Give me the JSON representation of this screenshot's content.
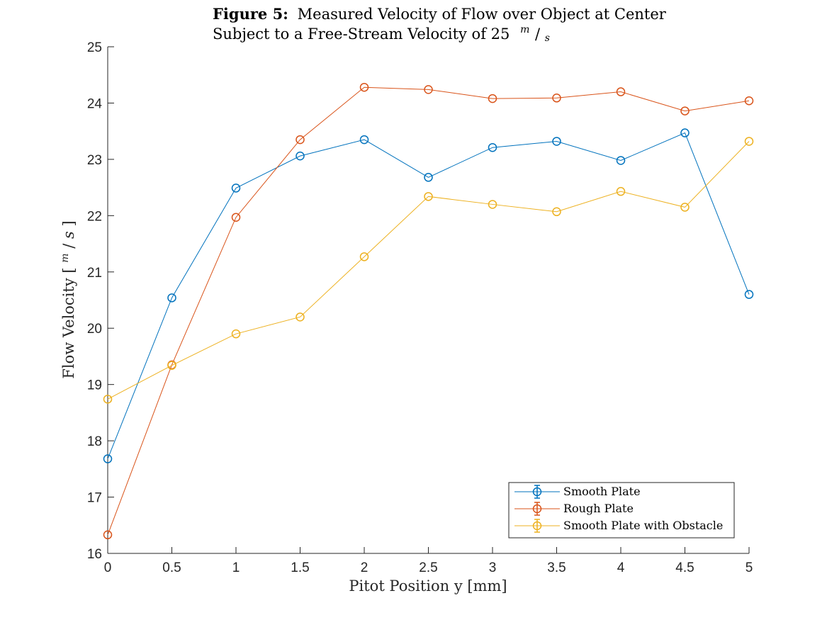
{
  "chart_data": {
    "type": "line",
    "title_bold": "Figure 5:",
    "title_line1": "Measured Velocity of Flow over Object at Center",
    "title_line2": "Subject to a Free-Stream Velocity of 25",
    "title_unit_num": "m",
    "title_unit_den": "s",
    "xlabel": "Pitot Position y [mm]",
    "ylabel_text": "Flow Velocity [",
    "ylabel_unit_num": "m",
    "ylabel_unit_den": "s",
    "ylabel_close": "]",
    "xlim": [
      0,
      5
    ],
    "ylim": [
      16,
      25
    ],
    "x_ticks": [
      0,
      0.5,
      1,
      1.5,
      2,
      2.5,
      3,
      3.5,
      4,
      4.5,
      5
    ],
    "x_tick_labels": [
      "0",
      "0.5",
      "1",
      "1.5",
      "2",
      "2.5",
      "3",
      "3.5",
      "4",
      "4.5",
      "5"
    ],
    "y_ticks": [
      16,
      17,
      18,
      19,
      20,
      21,
      22,
      23,
      24,
      25
    ],
    "y_tick_labels": [
      "16",
      "17",
      "18",
      "19",
      "20",
      "21",
      "22",
      "23",
      "24",
      "25"
    ],
    "grid": false,
    "legend_position": "bottom-right",
    "x": [
      0,
      0.5,
      1,
      1.5,
      2,
      2.5,
      3,
      3.5,
      4,
      4.5,
      5
    ],
    "series": [
      {
        "name": "Smooth Plate",
        "color": "#0072BD",
        "marker": "circle",
        "values": [
          17.68,
          20.54,
          22.49,
          23.06,
          23.35,
          22.68,
          23.21,
          23.32,
          22.98,
          23.47,
          20.6
        ]
      },
      {
        "name": "Rough Plate",
        "color": "#D95319",
        "marker": "circle",
        "values": [
          16.33,
          19.35,
          21.97,
          23.35,
          24.28,
          24.24,
          24.08,
          24.09,
          24.2,
          23.86,
          24.04
        ]
      },
      {
        "name": "Smooth Plate with Obstacle",
        "color": "#EDB120",
        "marker": "circle",
        "values": [
          18.74,
          19.34,
          19.9,
          20.2,
          21.27,
          22.34,
          22.2,
          22.07,
          22.43,
          22.15,
          23.32
        ]
      }
    ]
  }
}
